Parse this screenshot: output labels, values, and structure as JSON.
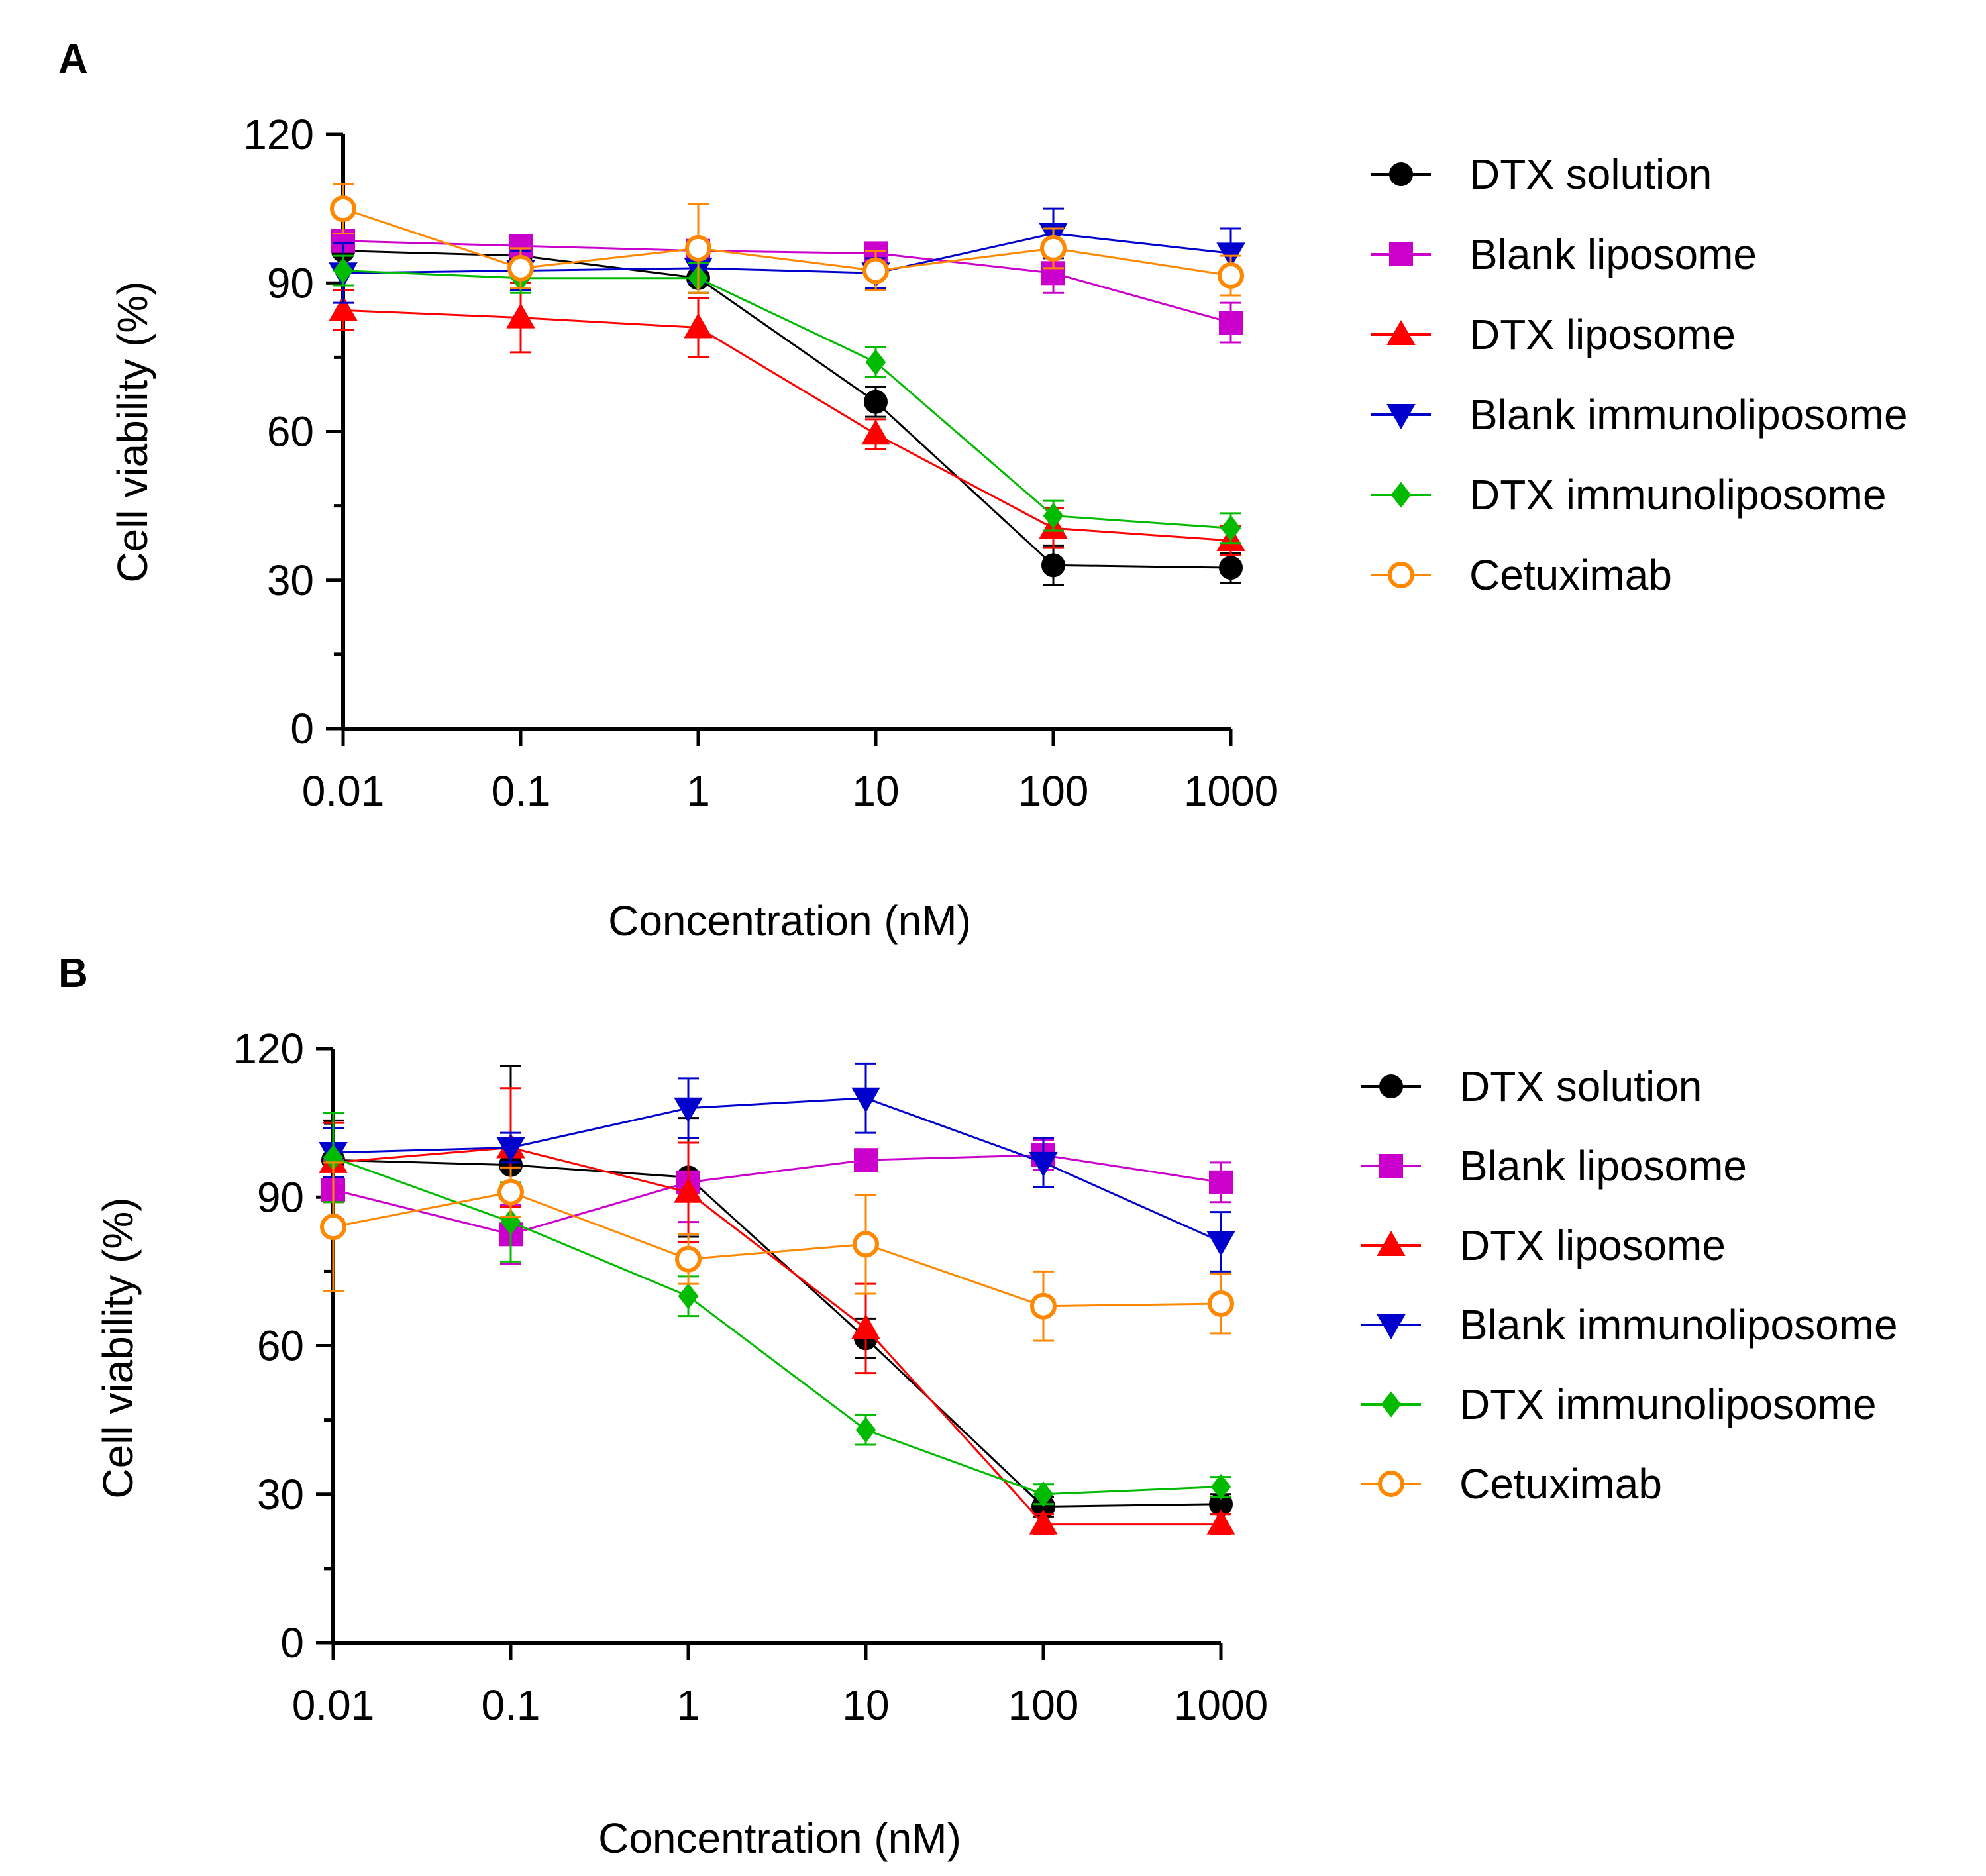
{
  "chart_data": [
    {
      "panel": "A",
      "type": "line",
      "xscale": "log",
      "x": [
        0.01,
        0.1,
        1,
        10,
        100,
        1000
      ],
      "xticks": [
        "0.01",
        "0.1",
        "1",
        "10",
        "100",
        "1000"
      ],
      "xlabel": "Concentration (nM)",
      "ylabel": "Cell viability (%)",
      "ylim": [
        0,
        120
      ],
      "yticks": [
        "0",
        "30",
        "60",
        "90",
        "120"
      ],
      "legend_position": "right",
      "series": [
        {
          "name": "DTX solution",
          "color": "#000000",
          "marker": "circle",
          "fill": true,
          "values": [
            96.5,
            95.5,
            91,
            66,
            33,
            32.5
          ],
          "errors": [
            3,
            3,
            3,
            3,
            4,
            3
          ]
        },
        {
          "name": "Blank liposome",
          "color": "#cc00cc",
          "marker": "square",
          "fill": true,
          "values": [
            98.5,
            97.5,
            96.5,
            96,
            92,
            82
          ],
          "errors": [
            2,
            2,
            2,
            2,
            4,
            4
          ]
        },
        {
          "name": "DTX liposome",
          "color": "#ff0000",
          "marker": "triangle-up",
          "fill": true,
          "values": [
            84.5,
            83,
            81,
            59.5,
            40.5,
            38
          ],
          "errors": [
            4,
            7,
            6,
            3,
            4,
            3
          ]
        },
        {
          "name": "Blank immunoliposome",
          "color": "#0000cc",
          "marker": "triangle-down",
          "fill": true,
          "values": [
            92,
            92.5,
            93,
            92,
            100,
            96
          ],
          "errors": [
            6,
            4,
            3,
            3,
            5,
            5
          ]
        },
        {
          "name": "DTX immunoliposome",
          "color": "#00bb00",
          "marker": "diamond",
          "fill": true,
          "values": [
            92.5,
            91,
            91,
            74,
            43,
            40.5
          ],
          "errors": [
            3,
            3,
            3,
            3,
            3,
            3
          ]
        },
        {
          "name": "Cetuximab",
          "color": "#ff8800",
          "marker": "circle",
          "fill": false,
          "values": [
            105,
            93,
            97,
            92.5,
            97,
            91.5
          ],
          "errors": [
            5,
            4,
            9,
            4,
            4,
            4
          ]
        }
      ]
    },
    {
      "panel": "B",
      "type": "line",
      "xscale": "log",
      "x": [
        0.01,
        0.1,
        1,
        10,
        100,
        1000
      ],
      "xticks": [
        "0.01",
        "0.1",
        "1",
        "10",
        "100",
        "1000"
      ],
      "xlabel": "Concentration (nM)",
      "ylabel": "Cell viability (%)",
      "ylim": [
        0,
        120
      ],
      "yticks": [
        "0",
        "30",
        "60",
        "90",
        "120"
      ],
      "legend_position": "right",
      "series": [
        {
          "name": "DTX solution",
          "color": "#000000",
          "marker": "circle",
          "fill": true,
          "values": [
            97.5,
            96.5,
            94,
            61.5,
            27.5,
            28
          ],
          "errors": [
            8,
            20,
            12,
            4,
            2,
            2
          ]
        },
        {
          "name": "Blank liposome",
          "color": "#cc00cc",
          "marker": "square",
          "fill": true,
          "values": [
            91.5,
            82.5,
            93,
            97.5,
            98.5,
            93
          ],
          "errors": [
            6,
            6,
            8,
            2,
            3,
            4
          ]
        },
        {
          "name": "DTX liposome",
          "color": "#ff0000",
          "marker": "triangle-up",
          "fill": true,
          "values": [
            97,
            100,
            91,
            63.5,
            24,
            24
          ],
          "errors": [
            8,
            12,
            10,
            9,
            2,
            2
          ]
        },
        {
          "name": "Blank immunoliposome",
          "color": "#0000cc",
          "marker": "triangle-down",
          "fill": true,
          "values": [
            99,
            100,
            108,
            110,
            97,
            81
          ],
          "errors": [
            5,
            3,
            6,
            7,
            5,
            6
          ]
        },
        {
          "name": "DTX immunoliposome",
          "color": "#00bb00",
          "marker": "diamond",
          "fill": true,
          "values": [
            98,
            85,
            70,
            43,
            30,
            31.5
          ],
          "errors": [
            9,
            8,
            4,
            3,
            2,
            2
          ]
        },
        {
          "name": "Cetuximab",
          "color": "#ff8800",
          "marker": "circle",
          "fill": false,
          "values": [
            84,
            91,
            77.5,
            80.5,
            68,
            68.5
          ],
          "errors": [
            13,
            5,
            5,
            10,
            7,
            6
          ]
        }
      ]
    }
  ]
}
